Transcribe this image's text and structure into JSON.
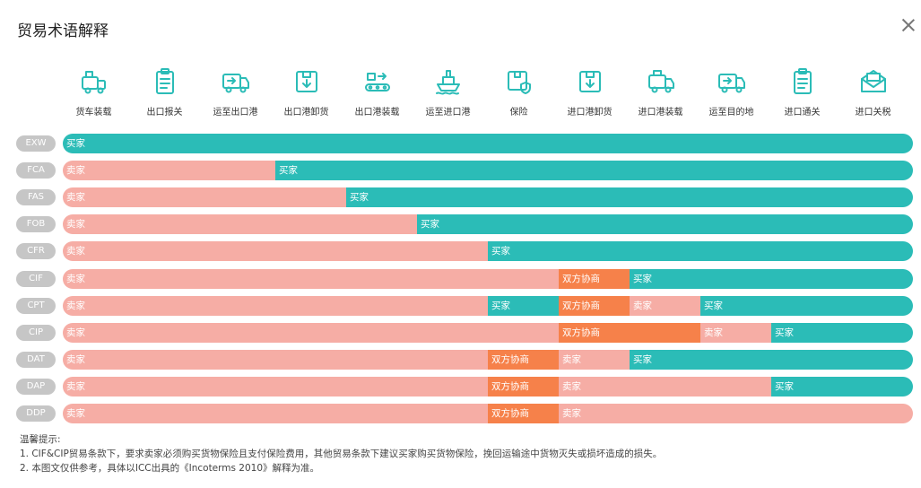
{
  "dialog": {
    "title": "贸易术语解释"
  },
  "stages": [
    {
      "label": "货车装载",
      "icon": "truck-loading-icon"
    },
    {
      "label": "出口报关",
      "icon": "clipboard-icon"
    },
    {
      "label": "运至出口港",
      "icon": "truck-arrow-icon"
    },
    {
      "label": "出口港卸货",
      "icon": "box-down-icon"
    },
    {
      "label": "出口港装载",
      "icon": "conveyor-icon"
    },
    {
      "label": "运至进口港",
      "icon": "ship-icon"
    },
    {
      "label": "保险",
      "icon": "box-shield-icon"
    },
    {
      "label": "进口港卸货",
      "icon": "box-down-icon"
    },
    {
      "label": "进口港装载",
      "icon": "truck-box-icon"
    },
    {
      "label": "运至目的地",
      "icon": "truck-arrow-icon"
    },
    {
      "label": "进口通关",
      "icon": "clipboard-icon"
    },
    {
      "label": "进口关税",
      "icon": "tax-envelope-icon"
    }
  ],
  "legend_colors": {
    "seller": "#f6ada5",
    "buyer": "#2bbcb7",
    "both": "#f6814a"
  },
  "terms": [
    {
      "code": "EXW",
      "segments": [
        {
          "type": "buyer",
          "label": "买家",
          "from": 0,
          "to": 12
        }
      ]
    },
    {
      "code": "FCA",
      "segments": [
        {
          "type": "seller",
          "label": "卖家",
          "from": 0,
          "to": 3
        },
        {
          "type": "buyer",
          "label": "买家",
          "from": 3,
          "to": 12
        }
      ]
    },
    {
      "code": "FAS",
      "segments": [
        {
          "type": "seller",
          "label": "卖家",
          "from": 0,
          "to": 4
        },
        {
          "type": "buyer",
          "label": "买家",
          "from": 4,
          "to": 12
        }
      ]
    },
    {
      "code": "FOB",
      "segments": [
        {
          "type": "seller",
          "label": "卖家",
          "from": 0,
          "to": 5
        },
        {
          "type": "buyer",
          "label": "买家",
          "from": 5,
          "to": 12
        }
      ]
    },
    {
      "code": "CFR",
      "segments": [
        {
          "type": "seller",
          "label": "卖家",
          "from": 0,
          "to": 6
        },
        {
          "type": "buyer",
          "label": "买家",
          "from": 6,
          "to": 12
        }
      ]
    },
    {
      "code": "CIF",
      "segments": [
        {
          "type": "seller",
          "label": "卖家",
          "from": 0,
          "to": 7
        },
        {
          "type": "both",
          "label": "双方协商",
          "from": 7,
          "to": 8
        },
        {
          "type": "buyer",
          "label": "买家",
          "from": 8,
          "to": 12
        }
      ]
    },
    {
      "code": "CPT",
      "segments": [
        {
          "type": "seller",
          "label": "卖家",
          "from": 0,
          "to": 6
        },
        {
          "type": "buyer",
          "label": "买家",
          "from": 6,
          "to": 7
        },
        {
          "type": "both",
          "label": "双方协商",
          "from": 7,
          "to": 8
        },
        {
          "type": "seller",
          "label": "卖家",
          "from": 8,
          "to": 9
        },
        {
          "type": "buyer",
          "label": "买家",
          "from": 9,
          "to": 12
        }
      ]
    },
    {
      "code": "CIP",
      "segments": [
        {
          "type": "seller",
          "label": "卖家",
          "from": 0,
          "to": 7
        },
        {
          "type": "both",
          "label": "双方协商",
          "from": 7,
          "to": 9
        },
        {
          "type": "seller",
          "label": "卖家",
          "from": 9,
          "to": 10
        },
        {
          "type": "buyer",
          "label": "买家",
          "from": 10,
          "to": 12
        }
      ]
    },
    {
      "code": "DAT",
      "segments": [
        {
          "type": "seller",
          "label": "卖家",
          "from": 0,
          "to": 6
        },
        {
          "type": "both",
          "label": "双方协商",
          "from": 6,
          "to": 7
        },
        {
          "type": "seller",
          "label": "卖家",
          "from": 7,
          "to": 8
        },
        {
          "type": "buyer",
          "label": "买家",
          "from": 8,
          "to": 12
        }
      ]
    },
    {
      "code": "DAP",
      "segments": [
        {
          "type": "seller",
          "label": "卖家",
          "from": 0,
          "to": 6
        },
        {
          "type": "both",
          "label": "双方协商",
          "from": 6,
          "to": 7
        },
        {
          "type": "seller",
          "label": "卖家",
          "from": 7,
          "to": 10
        },
        {
          "type": "buyer",
          "label": "买家",
          "from": 10,
          "to": 12
        }
      ]
    },
    {
      "code": "DDP",
      "segments": [
        {
          "type": "seller",
          "label": "卖家",
          "from": 0,
          "to": 6
        },
        {
          "type": "both",
          "label": "双方协商",
          "from": 6,
          "to": 7
        },
        {
          "type": "seller",
          "label": "卖家",
          "from": 7,
          "to": 12
        }
      ]
    }
  ],
  "notes": {
    "heading": "温馨提示:",
    "line1": "1. CIF&CIP贸易条款下，要求卖家必须购买货物保险且支付保险费用，其他贸易条款下建议买家购买货物保险，挽回运输途中货物灭失或损坏造成的损失。",
    "line2": "2. 本图文仅供参考，具体以ICC出具的《Incoterms 2010》解释为准。"
  }
}
